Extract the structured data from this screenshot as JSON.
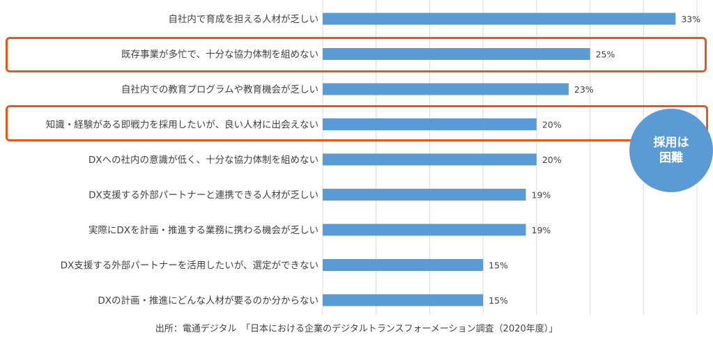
{
  "chart_data": {
    "type": "bar",
    "orientation": "horizontal",
    "categories": [
      "自社内で育成を担える人材が乏しい",
      "既存事業が多忙で、十分な協力体制を組めない",
      "自社内での教育プログラムや教育機会が乏しい",
      "知識・経験がある即戦力を採用したいが、良い人材に出会えない",
      "DXへの社内の意識が低く、十分な協力体制を組めない",
      "DX支援する外部パートナーと連携できる人材が乏しい",
      "実際にDXを計画・推進する業務に携わる機会が乏しい",
      "DX支援する外部パートナーを活用したいが、選定ができない",
      "DXの計画・推進にどんな人材が要るのか分からない"
    ],
    "values": [
      33,
      25,
      23,
      20,
      20,
      19,
      19,
      15,
      15
    ],
    "value_labels": [
      "33%",
      "25%",
      "23%",
      "20%",
      "20%",
      "19%",
      "19%",
      "15%",
      "15%"
    ],
    "xlim": [
      0,
      35
    ],
    "grid": true,
    "bar_color": "#5b9bd5",
    "highlight_color": "#e8561f",
    "highlighted_categories": [
      1,
      3
    ]
  },
  "annotation": {
    "line1": "採用は",
    "line2": "困難"
  },
  "source": "出所：電通デジタル　「日本における企業のデジタルトランスフォーメーション調査（2020年度）」"
}
